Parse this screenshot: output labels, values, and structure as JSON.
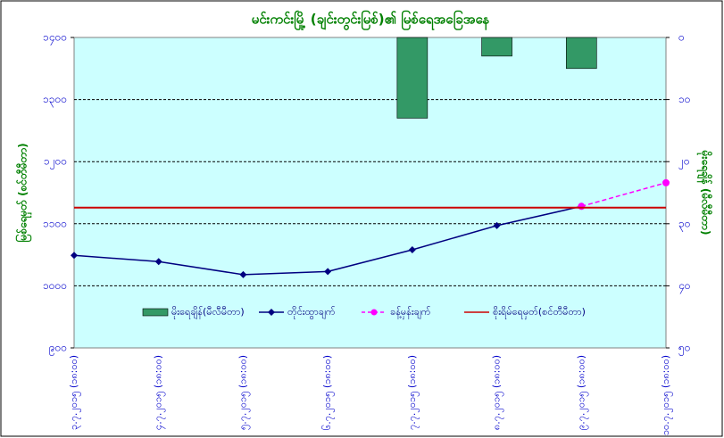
{
  "chart_data": {
    "type": "combo",
    "title": "မင်းကင်းမြို့ (ချင်းတွင်းမြစ်)၏ မြစ်ရေအခြေအနေ",
    "y_label": "မြစ်ရေမှတ် (စင်တီမီတာ)",
    "y2_label": "မိုးရေချိန် (မီလီမီတာ)",
    "categories": [
      "၃.၇.၂၀၁၅ (၁၈:၀၀)",
      "၄.၇.၂၀၁၅ (၁၈:၀၀)",
      "၅.၇.၂၀၁၅ (၁၈:၀၀)",
      "၆.၇.၂၀၁၅ (၁၈:၀၀)",
      "၇.၇.၂၀၁၅ (၁၈:၀၀)",
      "၈.၇.၂၀၁၅ (၁၈:၀၀)",
      "၉.၇.၂၀၁၅ (၁၈:၀၀)",
      "၁၀.၇.၂၀၁၅ (၁၈:၀၀)"
    ],
    "series": [
      {
        "name": "မိုးရေချိန်(မီလီမီတာ)",
        "type": "bar",
        "axis": "y2",
        "color": "#339966",
        "values": [
          null,
          null,
          null,
          null,
          13,
          3,
          5,
          null
        ]
      },
      {
        "name": "တိုင်းထွာချက်",
        "type": "line",
        "color": "#000080",
        "values": [
          1049,
          1039,
          1018,
          1023,
          1058,
          1097,
          1128,
          null
        ]
      },
      {
        "name": "ခန့်မှန်းချက်",
        "type": "line",
        "dashed": true,
        "color": "#ff00ff",
        "values": [
          null,
          null,
          null,
          null,
          null,
          null,
          1128,
          1166
        ]
      },
      {
        "name": "စိုးရိမ်ရေမှတ်(စင်တီမီတာ)",
        "type": "hline",
        "color": "#cc0000",
        "values": [
          1126,
          1126,
          1126,
          1126,
          1126,
          1126,
          1126,
          1126
        ]
      }
    ],
    "ylim": [
      900,
      1400
    ],
    "yticks": [
      {
        "value": 900,
        "label": "၉၀၀"
      },
      {
        "value": 1000,
        "label": "၁၀၀၀"
      },
      {
        "value": 1100,
        "label": "၁၁၀၀"
      },
      {
        "value": 1200,
        "label": "၁၂၀၀"
      },
      {
        "value": 1300,
        "label": "၁၃၀၀"
      },
      {
        "value": 1400,
        "label": "၁၄၀၀"
      }
    ],
    "y2lim": [
      50,
      0
    ],
    "y2ticks": [
      {
        "value": 0,
        "label": "၀"
      },
      {
        "value": 10,
        "label": "၁၀"
      },
      {
        "value": 20,
        "label": "၂၀"
      },
      {
        "value": 30,
        "label": "၃၀"
      },
      {
        "value": 40,
        "label": "၄၀"
      },
      {
        "value": 50,
        "label": "၅၀"
      }
    ],
    "grid": true
  }
}
